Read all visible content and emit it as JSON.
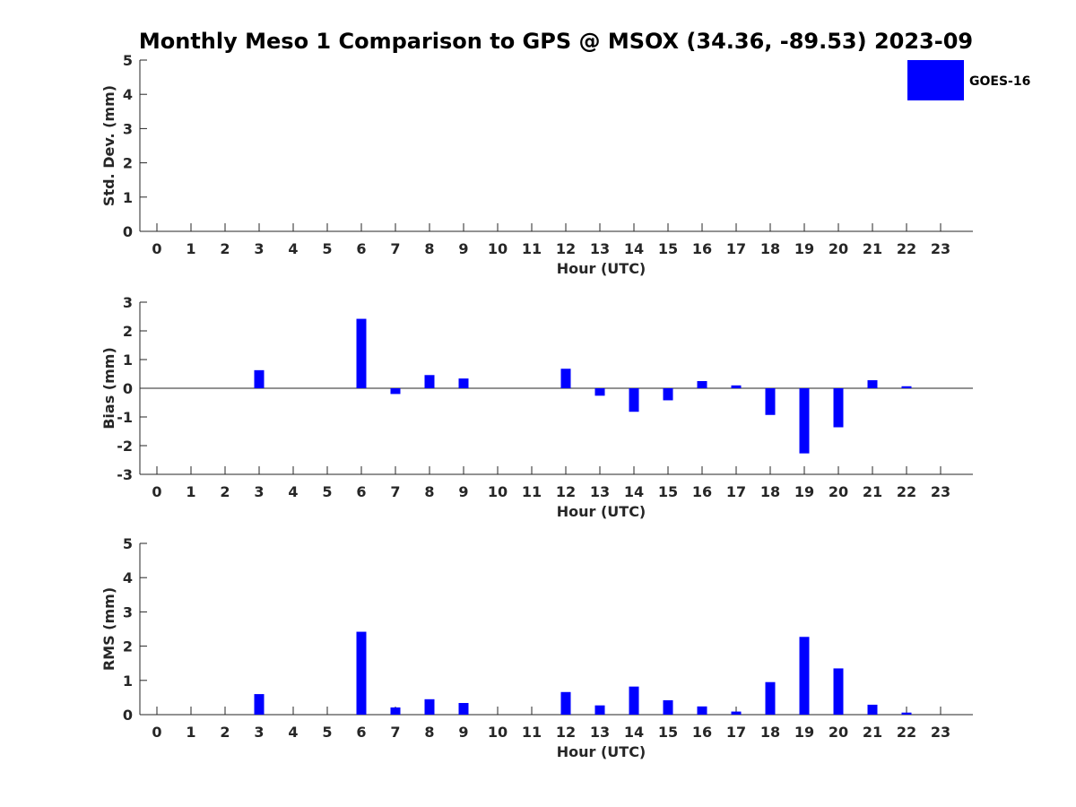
{
  "title": "Monthly Meso 1 Comparison to GPS @ MSOX (34.36, -89.53) 2023-09",
  "colors": {
    "bar": "#0000ff",
    "axis": "#262626",
    "background": "#ffffff"
  },
  "legend": {
    "label": "GOES-16",
    "placement": "top-right"
  },
  "chart_data": [
    {
      "type": "bar",
      "ylabel": "Std. Dev. (mm)",
      "xlabel": "Hour (UTC)",
      "ylim": [
        0,
        5
      ],
      "yticks": [
        "0",
        "1",
        "2",
        "3",
        "4",
        "5"
      ],
      "xticks": [
        "0",
        "1",
        "2",
        "3",
        "4",
        "5",
        "6",
        "7",
        "8",
        "9",
        "10",
        "11",
        "12",
        "13",
        "14",
        "15",
        "16",
        "17",
        "18",
        "19",
        "20",
        "21",
        "22",
        "23"
      ],
      "series": [
        {
          "name": "GOES-16",
          "values": [
            0,
            0,
            0,
            0,
            0,
            0,
            0,
            0,
            0,
            0,
            0,
            0,
            0,
            0,
            0,
            0,
            0,
            0,
            0,
            0,
            0,
            0,
            0,
            0
          ]
        }
      ]
    },
    {
      "type": "bar",
      "ylabel": "Bias (mm)",
      "xlabel": "Hour (UTC)",
      "ylim": [
        -3,
        3
      ],
      "yticks": [
        "-3",
        "-2",
        "-1",
        "0",
        "1",
        "2",
        "3"
      ],
      "xticks": [
        "0",
        "1",
        "2",
        "3",
        "4",
        "5",
        "6",
        "7",
        "8",
        "9",
        "10",
        "11",
        "12",
        "13",
        "14",
        "15",
        "16",
        "17",
        "18",
        "19",
        "20",
        "21",
        "22",
        "23"
      ],
      "series": [
        {
          "name": "GOES-16",
          "values": [
            0,
            0,
            0,
            0.63,
            0,
            0,
            2.42,
            -0.2,
            0.46,
            0.34,
            0,
            0,
            0.68,
            -0.26,
            -0.82,
            -0.42,
            0.25,
            0.1,
            -0.93,
            -2.27,
            -1.36,
            0.28,
            0.07,
            0
          ]
        }
      ]
    },
    {
      "type": "bar",
      "ylabel": "RMS (mm)",
      "xlabel": "Hour (UTC)",
      "ylim": [
        0,
        5
      ],
      "yticks": [
        "0",
        "1",
        "2",
        "3",
        "4",
        "5"
      ],
      "xticks": [
        "0",
        "1",
        "2",
        "3",
        "4",
        "5",
        "6",
        "7",
        "8",
        "9",
        "10",
        "11",
        "12",
        "13",
        "14",
        "15",
        "16",
        "17",
        "18",
        "19",
        "20",
        "21",
        "22",
        "23"
      ],
      "series": [
        {
          "name": "GOES-16",
          "values": [
            0,
            0,
            0,
            0.6,
            0,
            0,
            2.42,
            0.21,
            0.45,
            0.34,
            0,
            0,
            0.66,
            0.27,
            0.82,
            0.42,
            0.24,
            0.09,
            0.95,
            2.27,
            1.35,
            0.29,
            0.06,
            0
          ]
        }
      ]
    }
  ]
}
